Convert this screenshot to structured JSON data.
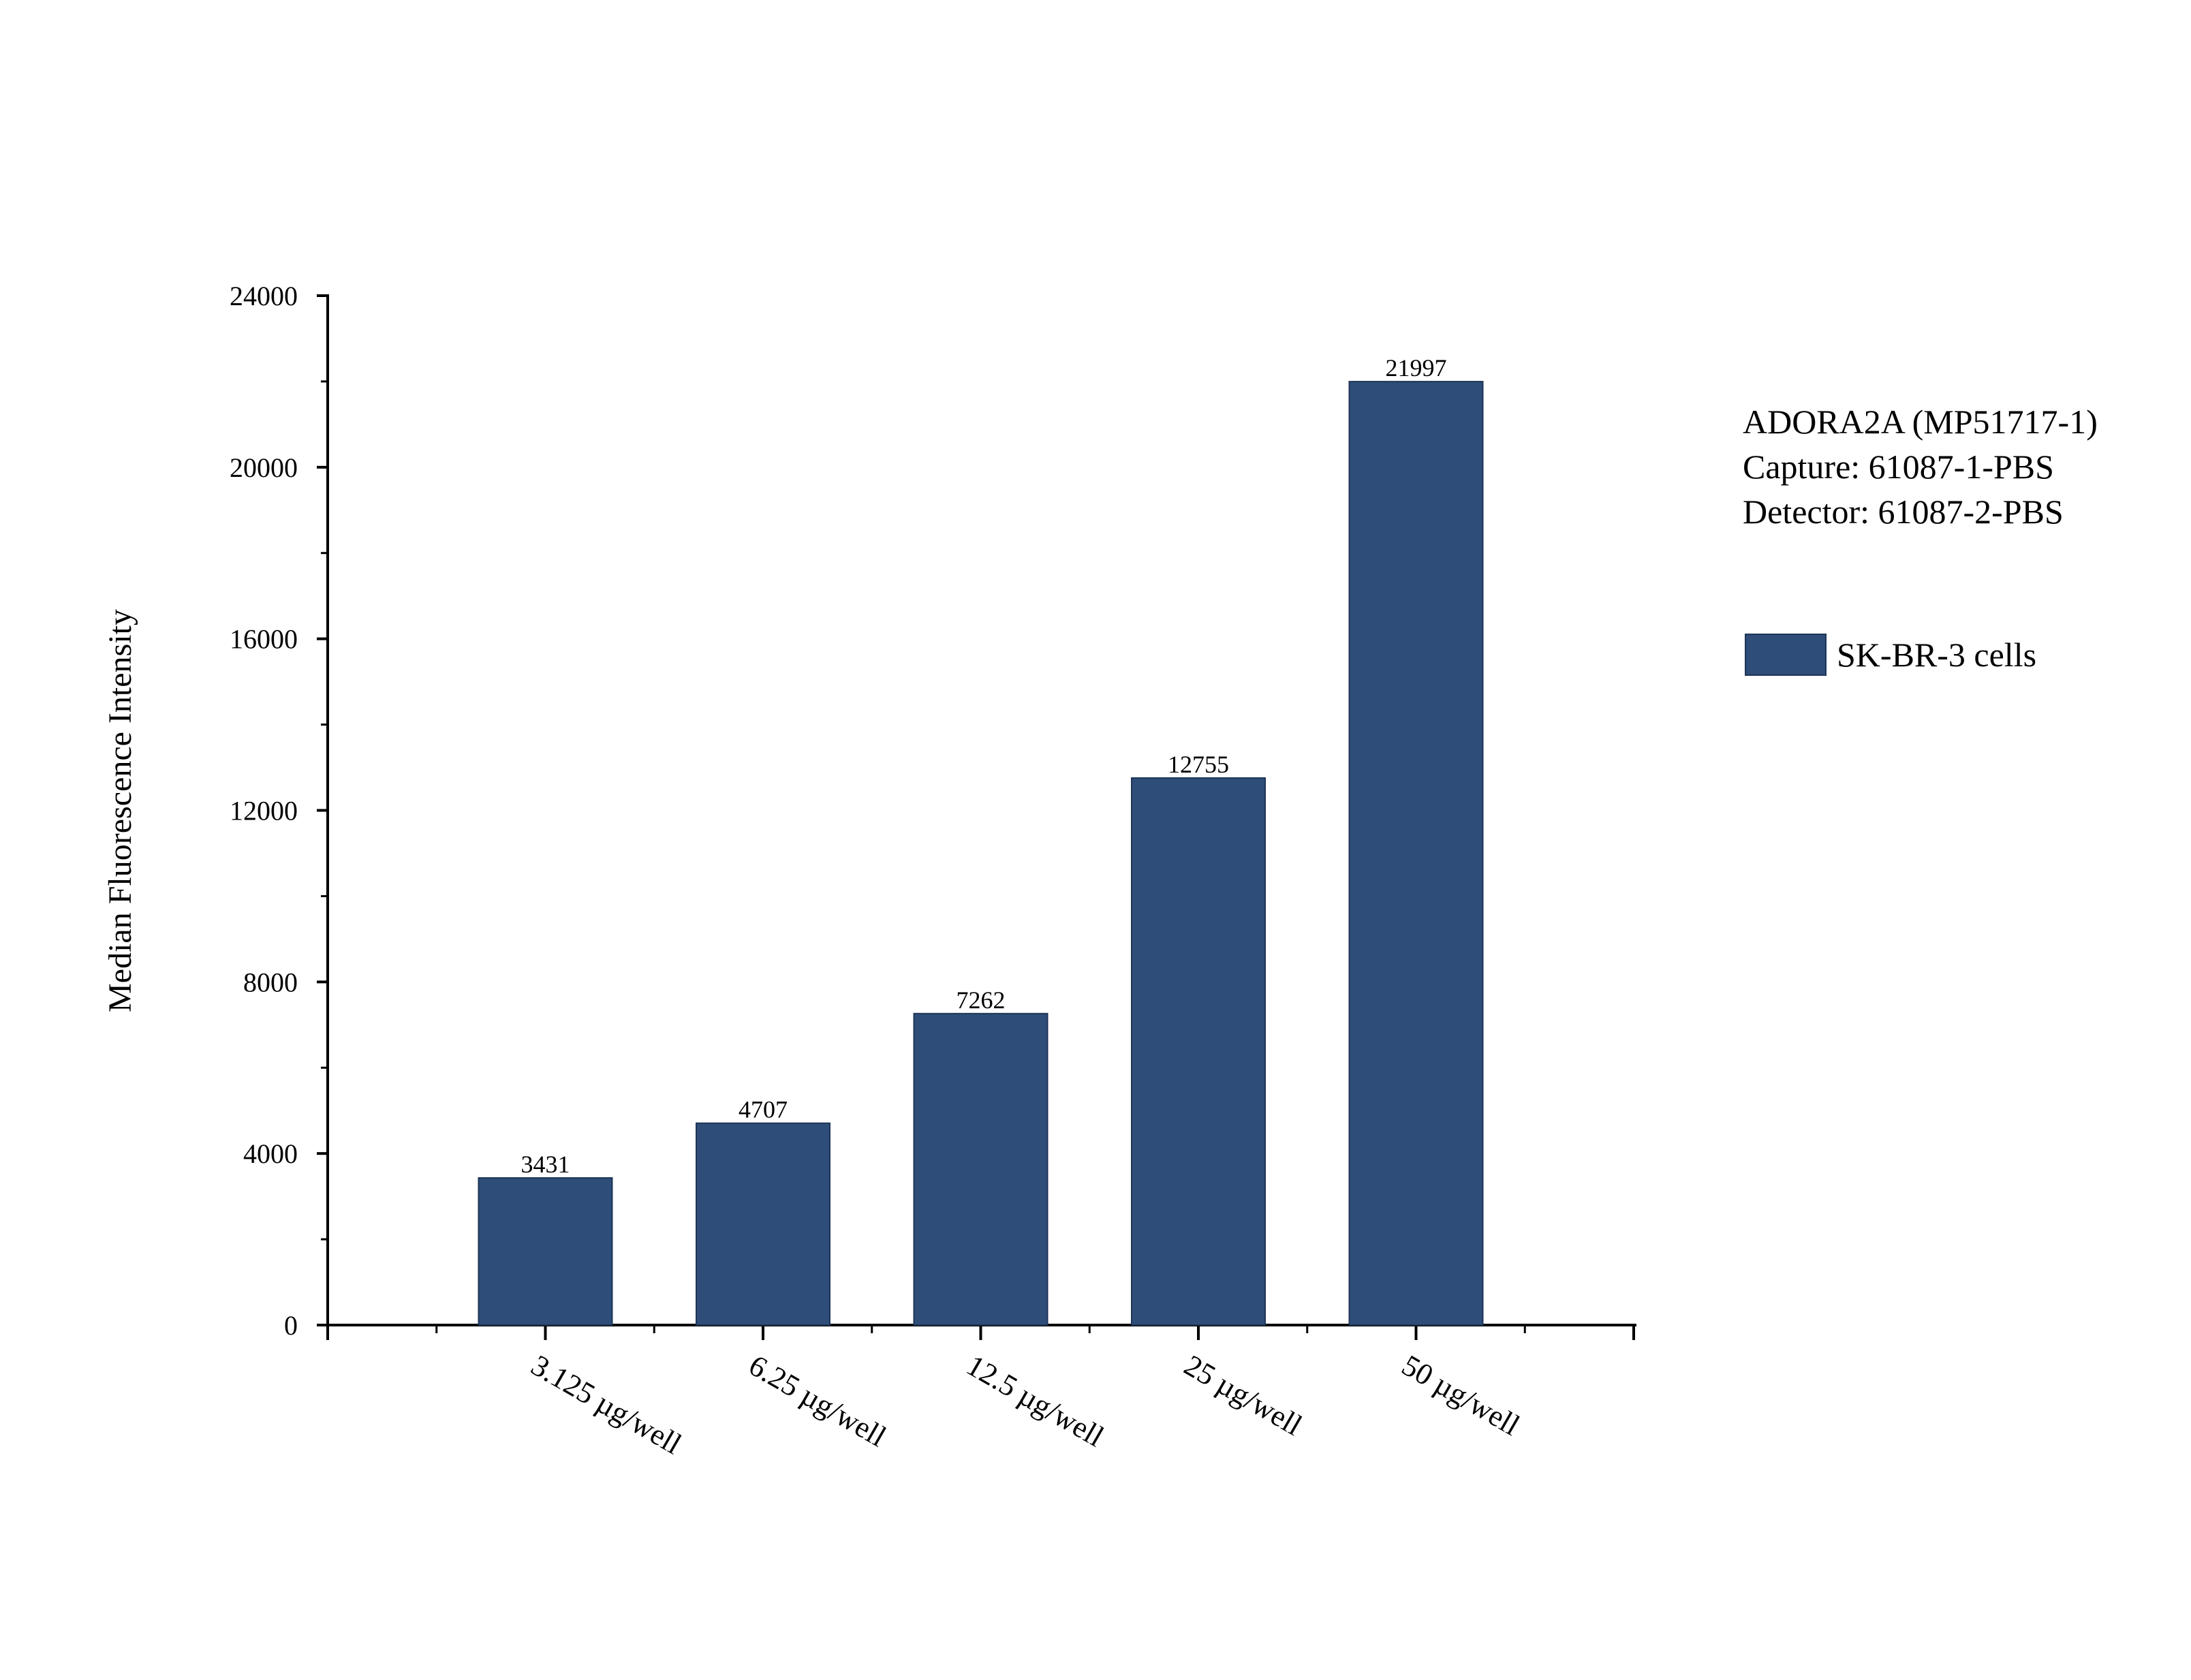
{
  "chart_data": {
    "type": "bar",
    "categories": [
      "3.125 µg/well",
      "6.25 µg/well",
      "12.5 µg/well",
      "25 µg/well",
      "50 µg/well"
    ],
    "series": [
      {
        "name": "SK-BR-3 cells",
        "values": [
          3431,
          4707,
          7262,
          12755,
          21997
        ],
        "color": "#2e4d78"
      }
    ],
    "title": "",
    "xlabel": "",
    "ylabel": "Median Fluorescence Intensity",
    "ylim": [
      0,
      24000
    ],
    "yticks": [
      0,
      4000,
      8000,
      12000,
      16000,
      20000,
      24000
    ],
    "y_tick_labels": [
      "0",
      "4000",
      "8000",
      "12000",
      "16000",
      "20000",
      "24000"
    ],
    "data_labels": [
      "3431",
      "4707",
      "7262",
      "12755",
      "21997"
    ],
    "grid": false,
    "legend_position": "right",
    "annotations": [
      "ADORA2A (MP51717-1)",
      "Capture: 61087-1-PBS",
      "Detector: 61087-2-PBS"
    ]
  }
}
